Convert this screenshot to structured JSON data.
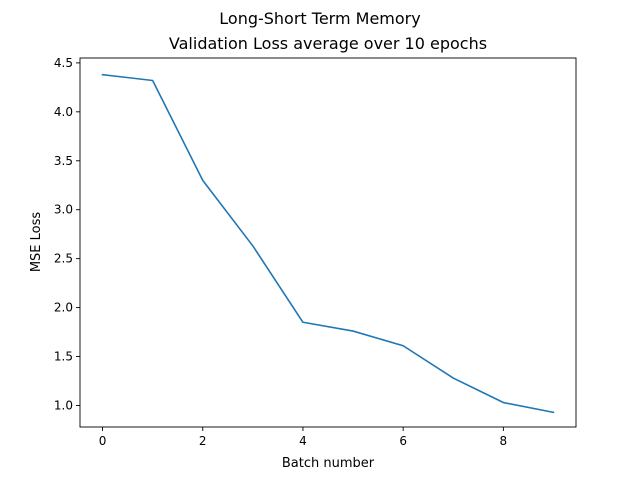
{
  "chart_data": {
    "type": "line",
    "suptitle": "Long-Short Term Memory",
    "title": "Validation Loss average over 10 epochs",
    "xlabel": "Batch number",
    "ylabel": "MSE Loss",
    "xlim": [
      -0.45,
      9.45
    ],
    "ylim": [
      0.78,
      4.55
    ],
    "xticks": [
      0,
      2,
      4,
      6,
      8
    ],
    "xtick_labels": [
      "0",
      "2",
      "4",
      "6",
      "8"
    ],
    "yticks": [
      1.0,
      1.5,
      2.0,
      2.5,
      3.0,
      3.5,
      4.0,
      4.5
    ],
    "ytick_labels": [
      "1.0",
      "1.5",
      "2.0",
      "2.5",
      "3.0",
      "3.5",
      "4.0",
      "4.5"
    ],
    "grid": false,
    "series": [
      {
        "color": "#1f77b4",
        "x": [
          0,
          1,
          2,
          3,
          4,
          5,
          6,
          7,
          8,
          9
        ],
        "y": [
          4.38,
          4.32,
          3.3,
          2.63,
          1.85,
          1.76,
          1.61,
          1.28,
          1.03,
          0.93
        ]
      }
    ]
  }
}
